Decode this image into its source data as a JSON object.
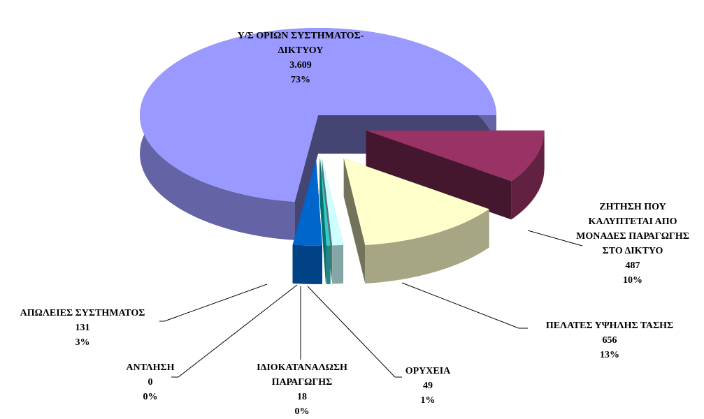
{
  "chart_data": {
    "type": "pie3d",
    "categories": [
      "ΖΗΤΗΣΗ ΠΟΥ\nΚΑΛΥΠΤΕΤΑΙ ΑΠΟ\nΜΟΝΑΔΕΣ ΠΑΡΑΓΩΓΗΣ\nΣΤΟ ΔΙΚΤΥΟ",
      "ΠΕΛΑΤΕΣ ΥΨΗΛΗΣ ΤΑΣΗΣ",
      "ΟΡΥΧΕΙΑ",
      "ΙΔΙΟΚΑΤΑΝΑΛΩΣΗ\nΠΑΡΑΓΩΓΗΣ",
      "ΑΝΤΛΗΣΗ",
      "ΑΠΩΛΕΙΕΣ ΣΥΣΤΗΜΑΤΟΣ",
      "Υ/Σ ΟΡΙΩΝ ΣΥΣΤΗΜΑΤΟΣ-\nΔΙΚΤΥΟΥ"
    ],
    "values": [
      487,
      656,
      49,
      18,
      0,
      131,
      3609
    ],
    "value_labels": [
      "487",
      "656",
      "49",
      "18",
      "0",
      "131",
      "3.609"
    ],
    "percent_labels": [
      "10%",
      "13%",
      "1%",
      "0%",
      "0%",
      "3%",
      "73%"
    ],
    "colors": [
      "#993366",
      "#ffffcc",
      "#ccffff",
      "#33cccc",
      "#00ffff",
      "#0066cc",
      "#9999ff"
    ]
  }
}
